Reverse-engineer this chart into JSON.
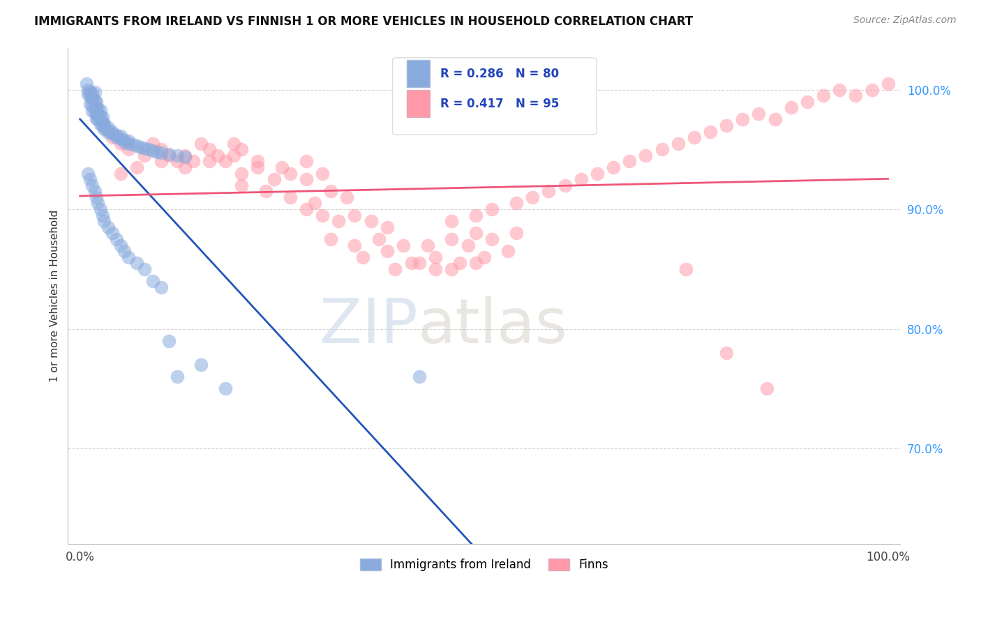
{
  "title": "IMMIGRANTS FROM IRELAND VS FINNISH 1 OR MORE VEHICLES IN HOUSEHOLD CORRELATION CHART",
  "source": "Source: ZipAtlas.com",
  "ylabel": "1 or more Vehicles in Household",
  "legend_ireland": "Immigrants from Ireland",
  "legend_finns": "Finns",
  "R_ireland": 0.286,
  "N_ireland": 80,
  "R_finns": 0.417,
  "N_finns": 95,
  "blue_color": "#88AADD",
  "pink_color": "#FF99AA",
  "blue_line_color": "#2255BB",
  "pink_line_color": "#EE5577",
  "ymin": 0.62,
  "ymax": 1.035,
  "xmin": -0.015,
  "xmax": 1.015,
  "watermark_zip": "ZIP",
  "watermark_atlas": "atlas",
  "ireland_x": [
    0.008,
    0.01,
    0.012,
    0.015,
    0.018,
    0.01,
    0.012,
    0.014,
    0.016,
    0.018,
    0.02,
    0.012,
    0.015,
    0.018,
    0.02,
    0.022,
    0.025,
    0.015,
    0.018,
    0.02,
    0.022,
    0.025,
    0.028,
    0.02,
    0.022,
    0.025,
    0.028,
    0.03,
    0.025,
    0.028,
    0.03,
    0.035,
    0.03,
    0.035,
    0.04,
    0.035,
    0.04,
    0.045,
    0.05,
    0.045,
    0.05,
    0.055,
    0.06,
    0.055,
    0.06,
    0.065,
    0.07,
    0.075,
    0.08,
    0.085,
    0.09,
    0.095,
    0.1,
    0.11,
    0.12,
    0.13,
    0.01,
    0.012,
    0.015,
    0.018,
    0.02,
    0.022,
    0.025,
    0.028,
    0.03,
    0.035,
    0.04,
    0.045,
    0.05,
    0.055,
    0.06,
    0.07,
    0.08,
    0.09,
    0.1,
    0.11,
    0.12,
    0.15,
    0.18,
    0.42
  ],
  "ireland_y": [
    1.005,
    1.0,
    0.998,
    0.997,
    0.998,
    0.996,
    0.995,
    0.993,
    0.992,
    0.991,
    0.99,
    0.988,
    0.987,
    0.986,
    0.985,
    0.984,
    0.983,
    0.982,
    0.981,
    0.98,
    0.979,
    0.978,
    0.977,
    0.976,
    0.975,
    0.974,
    0.973,
    0.972,
    0.971,
    0.97,
    0.969,
    0.968,
    0.967,
    0.966,
    0.965,
    0.964,
    0.963,
    0.962,
    0.961,
    0.96,
    0.959,
    0.958,
    0.957,
    0.956,
    0.955,
    0.954,
    0.953,
    0.952,
    0.951,
    0.95,
    0.949,
    0.948,
    0.947,
    0.946,
    0.945,
    0.944,
    0.93,
    0.925,
    0.92,
    0.915,
    0.91,
    0.905,
    0.9,
    0.895,
    0.89,
    0.885,
    0.88,
    0.875,
    0.87,
    0.865,
    0.86,
    0.855,
    0.85,
    0.84,
    0.835,
    0.79,
    0.76,
    0.77,
    0.75,
    0.76
  ],
  "finns_x": [
    0.05,
    0.08,
    0.1,
    0.12,
    0.13,
    0.04,
    0.06,
    0.09,
    0.11,
    0.14,
    0.15,
    0.16,
    0.17,
    0.18,
    0.19,
    0.2,
    0.05,
    0.07,
    0.1,
    0.13,
    0.16,
    0.19,
    0.22,
    0.25,
    0.28,
    0.2,
    0.22,
    0.24,
    0.26,
    0.28,
    0.3,
    0.2,
    0.23,
    0.26,
    0.29,
    0.31,
    0.33,
    0.28,
    0.3,
    0.32,
    0.34,
    0.36,
    0.38,
    0.31,
    0.34,
    0.37,
    0.4,
    0.35,
    0.38,
    0.41,
    0.44,
    0.39,
    0.42,
    0.46,
    0.49,
    0.44,
    0.47,
    0.5,
    0.53,
    0.48,
    0.51,
    0.54,
    0.43,
    0.46,
    0.49,
    0.46,
    0.49,
    0.51,
    0.54,
    0.56,
    0.58,
    0.6,
    0.62,
    0.64,
    0.66,
    0.68,
    0.7,
    0.72,
    0.74,
    0.76,
    0.78,
    0.8,
    0.82,
    0.84,
    0.86,
    0.88,
    0.9,
    0.92,
    0.94,
    0.96,
    0.98,
    1.0,
    0.75,
    0.8,
    0.85
  ],
  "finns_y": [
    0.955,
    0.945,
    0.95,
    0.94,
    0.945,
    0.96,
    0.95,
    0.955,
    0.945,
    0.94,
    0.955,
    0.95,
    0.945,
    0.94,
    0.955,
    0.95,
    0.93,
    0.935,
    0.94,
    0.935,
    0.94,
    0.945,
    0.94,
    0.935,
    0.94,
    0.93,
    0.935,
    0.925,
    0.93,
    0.925,
    0.93,
    0.92,
    0.915,
    0.91,
    0.905,
    0.915,
    0.91,
    0.9,
    0.895,
    0.89,
    0.895,
    0.89,
    0.885,
    0.875,
    0.87,
    0.875,
    0.87,
    0.86,
    0.865,
    0.855,
    0.86,
    0.85,
    0.855,
    0.85,
    0.855,
    0.85,
    0.855,
    0.86,
    0.865,
    0.87,
    0.875,
    0.88,
    0.87,
    0.875,
    0.88,
    0.89,
    0.895,
    0.9,
    0.905,
    0.91,
    0.915,
    0.92,
    0.925,
    0.93,
    0.935,
    0.94,
    0.945,
    0.95,
    0.955,
    0.96,
    0.965,
    0.97,
    0.975,
    0.98,
    0.975,
    0.985,
    0.99,
    0.995,
    1.0,
    0.995,
    1.0,
    1.005,
    0.85,
    0.78,
    0.75
  ]
}
